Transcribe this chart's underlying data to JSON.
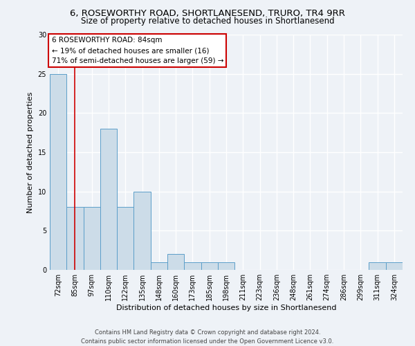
{
  "title_line1": "6, ROSEWORTHY ROAD, SHORTLANESEND, TRURO, TR4 9RR",
  "title_line2": "Size of property relative to detached houses in Shortlanesend",
  "xlabel": "Distribution of detached houses by size in Shortlanesend",
  "ylabel": "Number of detached properties",
  "footnote": "Contains HM Land Registry data © Crown copyright and database right 2024.\nContains public sector information licensed under the Open Government Licence v3.0.",
  "categories": [
    "72sqm",
    "85sqm",
    "97sqm",
    "110sqm",
    "122sqm",
    "135sqm",
    "148sqm",
    "160sqm",
    "173sqm",
    "185sqm",
    "198sqm",
    "211sqm",
    "223sqm",
    "236sqm",
    "248sqm",
    "261sqm",
    "274sqm",
    "286sqm",
    "299sqm",
    "311sqm",
    "324sqm"
  ],
  "values": [
    25,
    8,
    8,
    18,
    8,
    10,
    1,
    2,
    1,
    1,
    1,
    0,
    0,
    0,
    0,
    0,
    0,
    0,
    0,
    1,
    1
  ],
  "bar_color": "#ccdce8",
  "bar_edge_color": "#5b9ec9",
  "background_color": "#eef2f7",
  "grid_color": "#ffffff",
  "annotation_text": "6 ROSEWORTHY ROAD: 84sqm\n← 19% of detached houses are smaller (16)\n71% of semi-detached houses are larger (59) →",
  "annotation_box_color": "#ffffff",
  "annotation_box_edge_color": "#cc0000",
  "marker_color": "#cc0000",
  "ylim": [
    0,
    30
  ],
  "yticks": [
    0,
    5,
    10,
    15,
    20,
    25,
    30
  ],
  "title_fontsize": 9.5,
  "subtitle_fontsize": 8.5,
  "axis_label_fontsize": 8,
  "tick_fontsize": 7,
  "annotation_fontsize": 7.5,
  "footnote_fontsize": 6
}
